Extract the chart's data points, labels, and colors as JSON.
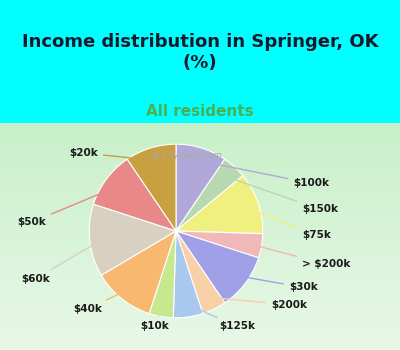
{
  "title": "Income distribution in Springer, OK\n(%)",
  "subtitle": "All residents",
  "title_color": "#1a1a2e",
  "subtitle_color": "#4CAF50",
  "background_top": "#00FFFF",
  "background_chart": "#e8f5e9",
  "watermark": "City-Data.com",
  "slices": [
    {
      "label": "$100k",
      "value": 9.5,
      "color": "#b0a8d8"
    },
    {
      "label": "$150k",
      "value": 4.5,
      "color": "#b8d8b0"
    },
    {
      "label": "$75k",
      "value": 11.5,
      "color": "#f0f080"
    },
    {
      "label": "> $200k",
      "value": 4.5,
      "color": "#f0b8b8"
    },
    {
      "label": "$30k",
      "value": 10.5,
      "color": "#a0a0e8"
    },
    {
      "label": "$200k",
      "value": 4.5,
      "color": "#f8d0a8"
    },
    {
      "label": "$125k",
      "value": 5.5,
      "color": "#a8c8f0"
    },
    {
      "label": "$10k",
      "value": 4.5,
      "color": "#c8e890"
    },
    {
      "label": "$40k",
      "value": 11.5,
      "color": "#f8b870"
    },
    {
      "label": "$60k",
      "value": 13.5,
      "color": "#d8d0c0"
    },
    {
      "label": "$50k",
      "value": 10.5,
      "color": "#e88888"
    },
    {
      "label": "$20k",
      "value": 9.5,
      "color": "#c8a040"
    }
  ]
}
